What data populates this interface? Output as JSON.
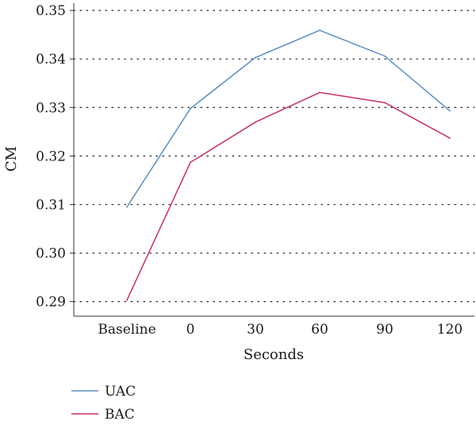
{
  "chart_data": {
    "type": "line",
    "categories": [
      "Baseline",
      "0",
      "30",
      "60",
      "90",
      "120"
    ],
    "series": [
      {
        "name": "UAC",
        "color": "#5b8ec2",
        "values": [
          0.3095,
          0.3298,
          0.3403,
          0.3459,
          0.3406,
          0.3293
        ]
      },
      {
        "name": "BAC",
        "color": "#c8325a",
        "values": [
          0.2903,
          0.3187,
          0.327,
          0.3331,
          0.331,
          0.3237
        ]
      }
    ],
    "title": "",
    "xlabel": "Seconds",
    "ylabel": "CM",
    "ylim": [
      0.287,
      0.3515
    ],
    "yticks": [
      "0.29",
      "0.30",
      "0.31",
      "0.32",
      "0.33",
      "0.34",
      "0.35"
    ],
    "grid": "horizontal dotted",
    "legend": "bottom-left"
  }
}
